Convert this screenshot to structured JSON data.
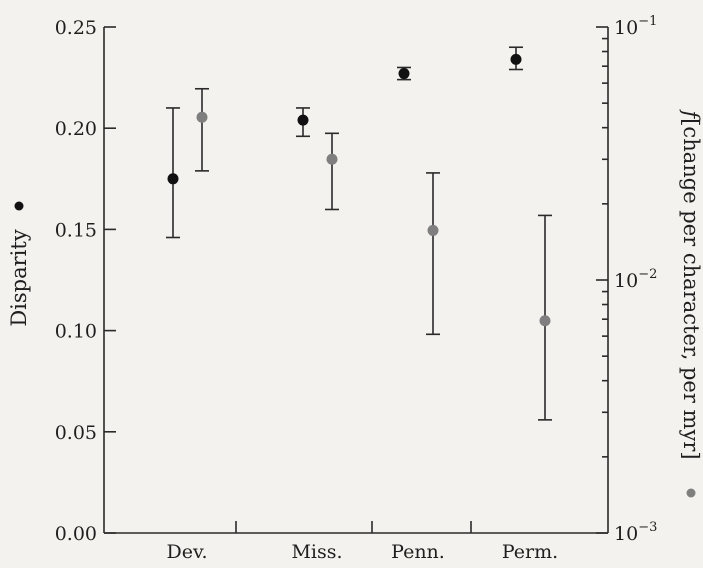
{
  "chart_data": {
    "type": "scatter",
    "categories": [
      "Dev.",
      "Miss.",
      "Penn.",
      "Perm."
    ],
    "left_axis": {
      "label": "Disparity",
      "ylim": [
        0,
        0.25
      ],
      "ticks": [
        "0.00",
        "0.05",
        "0.10",
        "0.15",
        "0.20",
        "0.25"
      ],
      "tick_values": [
        0,
        0.05,
        0.1,
        0.15,
        0.2,
        0.25
      ]
    },
    "right_axis": {
      "label_prefix": "f",
      "label_rest": "[change per character, per myr]",
      "scale": "log",
      "ylim": [
        0.001,
        0.1
      ],
      "ticks": [
        {
          "value": 0.001,
          "base": "10",
          "exp": "−3"
        },
        {
          "value": 0.01,
          "base": "10",
          "exp": "−2"
        },
        {
          "value": 0.1,
          "base": "10",
          "exp": "−1"
        }
      ]
    },
    "series": [
      {
        "marker": "black",
        "color": "#111111",
        "axis": "left",
        "points": [
          {
            "category": "Dev.",
            "y": 0.175,
            "low": 0.146,
            "high": 0.21
          },
          {
            "category": "Miss.",
            "y": 0.204,
            "low": 0.196,
            "high": 0.21
          },
          {
            "category": "Penn.",
            "y": 0.227,
            "low": 0.224,
            "high": 0.23
          },
          {
            "category": "Perm.",
            "y": 0.234,
            "low": 0.229,
            "high": 0.24
          }
        ]
      },
      {
        "marker": "gray",
        "color": "#7f7f7f",
        "axis": "right",
        "points": [
          {
            "category": "Dev.",
            "y": 0.044,
            "low": 0.027,
            "high": 0.057
          },
          {
            "category": "Miss.",
            "y": 0.03,
            "low": 0.019,
            "high": 0.038
          },
          {
            "category": "Penn.",
            "y": 0.0157,
            "low": 0.0061,
            "high": 0.0265
          },
          {
            "category": "Perm.",
            "y": 0.0069,
            "low": 0.0028,
            "high": 0.018
          }
        ]
      }
    ],
    "grid": false,
    "legend": "none"
  }
}
